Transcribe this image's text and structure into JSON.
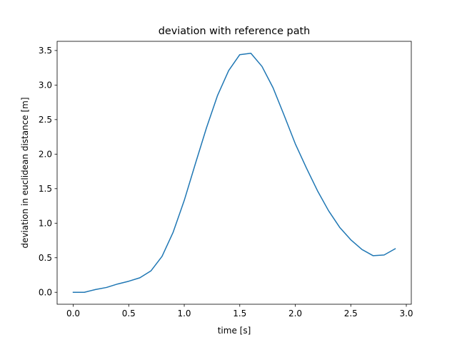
{
  "chart_data": {
    "type": "line",
    "title": "deviation with reference path",
    "xlabel": "time [s]",
    "ylabel": "deviation in euclidean distance [m]",
    "xlim": [
      -0.145,
      3.045
    ],
    "ylim": [
      -0.173,
      3.633
    ],
    "xticks": [
      0.0,
      0.5,
      1.0,
      1.5,
      2.0,
      2.5,
      3.0
    ],
    "xtick_labels": [
      "0.0",
      "0.5",
      "1.0",
      "1.5",
      "2.0",
      "2.5",
      "3.0"
    ],
    "yticks": [
      0.0,
      0.5,
      1.0,
      1.5,
      2.0,
      2.5,
      3.0,
      3.5
    ],
    "ytick_labels": [
      "0.0",
      "0.5",
      "1.0",
      "1.5",
      "2.0",
      "2.5",
      "3.0",
      "3.5"
    ],
    "grid": false,
    "legend": "none",
    "series": [
      {
        "color": "#1f77b4",
        "x": [
          0.0,
          0.1,
          0.2,
          0.3,
          0.4,
          0.5,
          0.6,
          0.7,
          0.8,
          0.9,
          1.0,
          1.1,
          1.2,
          1.3,
          1.4,
          1.5,
          1.6,
          1.7,
          1.8,
          1.9,
          2.0,
          2.1,
          2.2,
          2.3,
          2.4,
          2.5,
          2.6,
          2.7,
          2.8,
          2.9
        ],
        "y": [
          0.0,
          0.0,
          0.04,
          0.07,
          0.12,
          0.16,
          0.21,
          0.31,
          0.52,
          0.87,
          1.33,
          1.86,
          2.38,
          2.85,
          3.21,
          3.44,
          3.46,
          3.27,
          2.96,
          2.56,
          2.15,
          1.8,
          1.47,
          1.18,
          0.94,
          0.76,
          0.62,
          0.53,
          0.54,
          0.63
        ]
      }
    ]
  }
}
